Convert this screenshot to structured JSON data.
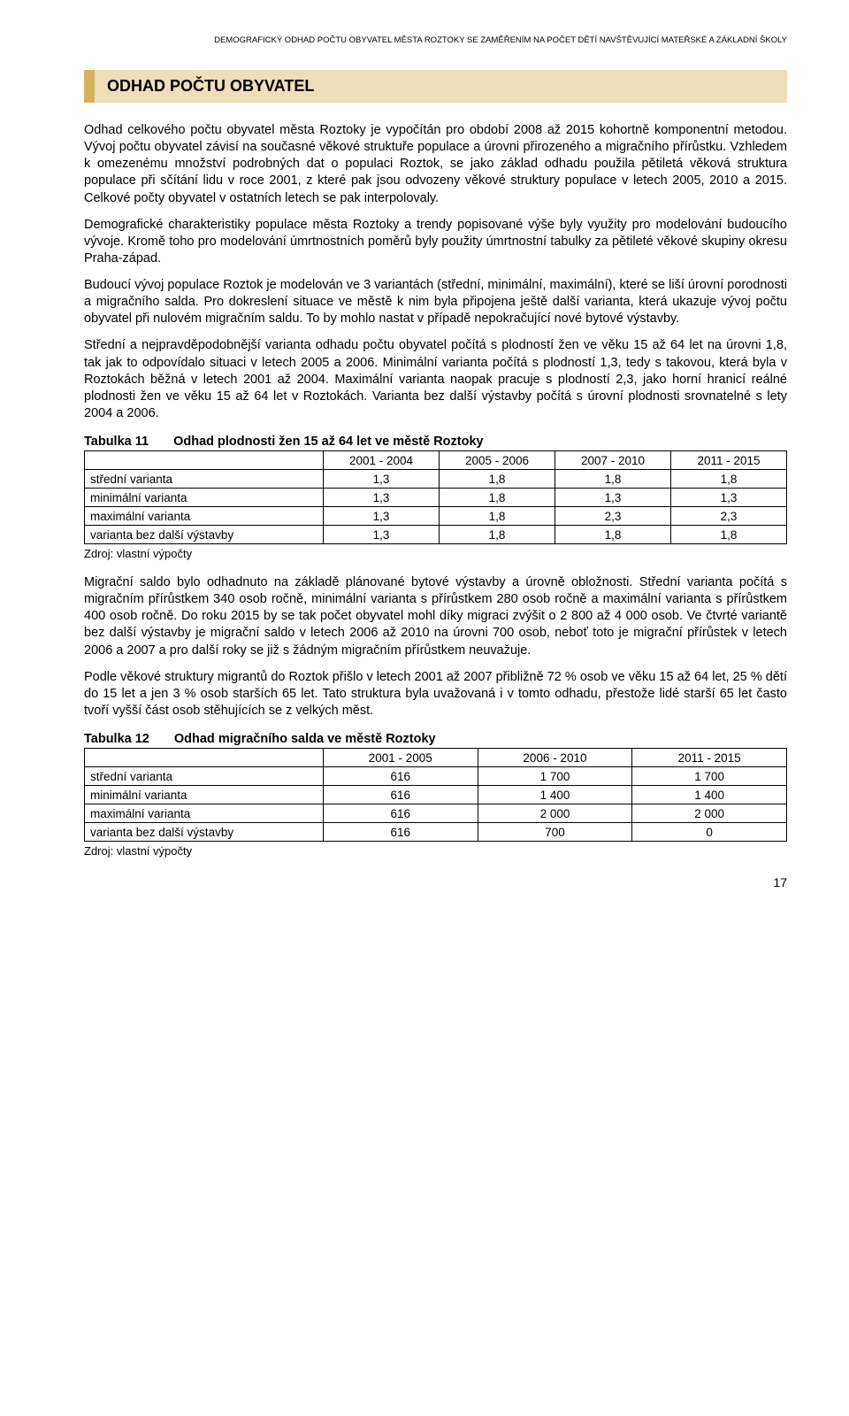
{
  "running_header": "DEMOGRAFICKÝ ODHAD POČTU OBYVATEL MĚSTA ROZTOKY SE ZAMĚŘENÍM NA POČET DĚTÍ NAVŠTĚVUJÍCÍ MATEŘSKÉ A ZÁKLADNÍ ŠKOLY",
  "heading": "ODHAD POČTU OBYVATEL",
  "paragraphs": {
    "p1": "Odhad celkového počtu obyvatel města Roztoky je vypočítán pro období 2008 až 2015 kohortně komponentní metodou. Vývoj počtu obyvatel závisí na současné věkové struktuře populace a úrovni přirozeného a migračního přírůstku. Vzhledem k omezenému množství podrobných dat o populaci Roztok, se jako základ odhadu použila pětiletá věková struktura populace při sčítání lidu v roce 2001, z které pak jsou odvozeny věkové struktury populace v letech 2005, 2010 a 2015. Celkové počty obyvatel v ostatních letech se pak interpolovaly.",
    "p2": "Demografické charakteristiky populace města Roztoky a trendy popisované výše byly využity pro modelování budoucího vývoje. Kromě toho pro modelování úmrtnostních poměrů byly použity úmrtnostní tabulky za pětileté věkové skupiny okresu Praha-západ.",
    "p3": "Budoucí vývoj populace Roztok je modelován ve 3 variantách (střední, minimální, maximální), které se liší úrovní porodnosti a migračního salda. Pro dokreslení situace ve městě k nim byla připojena ještě další varianta, která ukazuje vývoj počtu obyvatel při nulovém migračním saldu. To by mohlo nastat v případě nepokračující nové bytové výstavby.",
    "p4": "Střední a nejpravděpodobnější varianta odhadu počtu obyvatel počítá s plodností žen ve věku 15 až 64 let na úrovni 1,8, tak jak to odpovídalo situaci v letech 2005 a 2006. Minimální varianta počítá s plodností 1,3, tedy s takovou, která byla v Roztokách běžná v letech 2001 až 2004. Maximální varianta naopak pracuje s plodností 2,3, jako horní hranicí reálné plodnosti žen ve věku 15 až 64 let v Roztokách. Varianta bez další výstavby počítá s úrovní plodnosti srovnatelné s lety 2004 a 2006.",
    "p5": "Migrační saldo bylo odhadnuto na základě plánované bytové výstavby a úrovně obložnosti. Střední varianta počítá s migračním přírůstkem 340 osob ročně, minimální varianta s přírůstkem 280 osob ročně a maximální varianta s přírůstkem 400 osob ročně. Do roku 2015 by se tak počet obyvatel mohl díky migraci zvýšit o 2 800 až 4 000 osob. Ve čtvrté variantě bez další výstavby je migrační saldo v letech 2006 až 2010 na úrovni 700 osob, neboť toto je migrační přírůstek v letech 2006 a 2007 a pro další roky se již s žádným migračním přírůstkem neuvažuje.",
    "p6": "Podle věkové struktury migrantů do Roztok přišlo v letech 2001 až 2007 přibližně 72 % osob ve věku 15 až 64 let, 25 % dětí do 15 let a jen 3 % osob starších 65 let. Tato struktura byla uvažovaná i v tomto odhadu, přestože lidé starší 65 let často tvoří vyšší část osob stěhujících se z velkých měst."
  },
  "table11": {
    "caption_num": "Tabulka 11",
    "caption_title": "Odhad plodnosti žen 15 až 64 let ve městě Roztoky",
    "columns": [
      "2001 - 2004",
      "2005 - 2006",
      "2007 - 2010",
      "2011 - 2015"
    ],
    "col_widths": [
      "34%",
      "16.5%",
      "16.5%",
      "16.5%",
      "16.5%"
    ],
    "rows": [
      {
        "label": "střední varianta",
        "vals": [
          "1,3",
          "1,8",
          "1,8",
          "1,8"
        ]
      },
      {
        "label": "minimální varianta",
        "vals": [
          "1,3",
          "1,8",
          "1,3",
          "1,3"
        ]
      },
      {
        "label": "maximální varianta",
        "vals": [
          "1,3",
          "1,8",
          "2,3",
          "2,3"
        ]
      },
      {
        "label": "varianta bez další výstavby",
        "vals": [
          "1,3",
          "1,8",
          "1,8",
          "1,8"
        ]
      }
    ],
    "source": "Zdroj: vlastní výpočty"
  },
  "table12": {
    "caption_num": "Tabulka 12",
    "caption_title": "Odhad migračního salda ve městě Roztoky",
    "columns": [
      "2001 - 2005",
      "2006 - 2010",
      "2011 - 2015"
    ],
    "col_widths": [
      "34%",
      "22%",
      "22%",
      "22%"
    ],
    "rows": [
      {
        "label": "střední varianta",
        "vals": [
          "616",
          "1 700",
          "1 700"
        ]
      },
      {
        "label": "minimální varianta",
        "vals": [
          "616",
          "1 400",
          "1 400"
        ]
      },
      {
        "label": "maximální varianta",
        "vals": [
          "616",
          "2 000",
          "2 000"
        ]
      },
      {
        "label": "varianta bez další výstavby",
        "vals": [
          "616",
          "700",
          "0"
        ]
      }
    ],
    "source": "Zdroj: vlastní výpočty"
  },
  "page_number": "17",
  "style": {
    "heading_bg": "#eedfba",
    "heading_border": "#d6b25e",
    "body_font_size": 14.5,
    "table_border": "#000000"
  }
}
